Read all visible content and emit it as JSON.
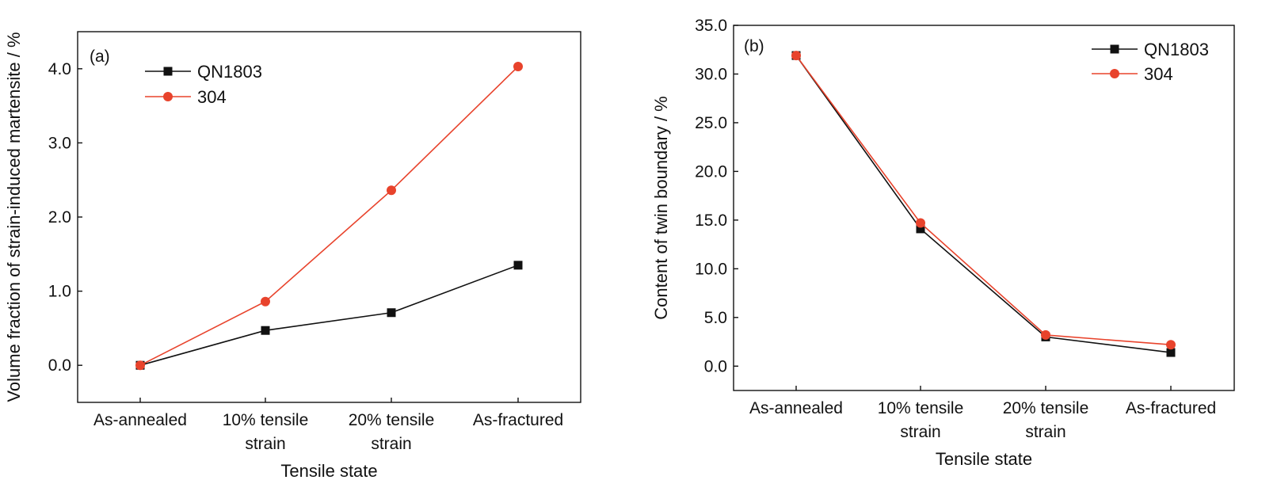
{
  "chart_data": [
    {
      "type": "line",
      "panel_label": "(a)",
      "categories": [
        [
          "As-annealed"
        ],
        [
          "10% tensile",
          "strain"
        ],
        [
          "20% tensile",
          "strain"
        ],
        [
          "As-fractured"
        ]
      ],
      "series": [
        {
          "name": "QN1803",
          "color": "#111111",
          "marker": "square",
          "values": [
            0.0,
            0.47,
            0.71,
            1.35
          ]
        },
        {
          "name": "304",
          "color": "#e8432c",
          "marker": "circle",
          "values": [
            0.0,
            0.86,
            2.36,
            4.03
          ]
        }
      ],
      "xlabel": "Tensile state",
      "ylabel": "Volume fraction of strain-induced martensite / %",
      "ylim": [
        -0.5,
        4.5
      ],
      "yticks": [
        "0.0",
        "1.0",
        "2.0",
        "3.0",
        "4.0"
      ],
      "legend_position": "top-left",
      "grid": false
    },
    {
      "type": "line",
      "panel_label": "(b)",
      "categories": [
        [
          "As-annealed"
        ],
        [
          "10% tensile",
          "strain"
        ],
        [
          "20% tensile",
          "strain"
        ],
        [
          "As-fractured"
        ]
      ],
      "series": [
        {
          "name": "QN1803",
          "color": "#111111",
          "marker": "square",
          "values": [
            31.9,
            14.1,
            3.0,
            1.4
          ]
        },
        {
          "name": "304",
          "color": "#e8432c",
          "marker": "circle",
          "values": [
            31.9,
            14.7,
            3.2,
            2.2
          ]
        }
      ],
      "xlabel": "Tensile state",
      "ylabel": "Content of twin boundary / %",
      "ylim": [
        -2.5,
        35.0
      ],
      "yticks": [
        "0.0",
        "5.0",
        "10.0",
        "15.0",
        "20.0",
        "25.0",
        "30.0",
        "35.0"
      ],
      "legend_position": "top-right",
      "grid": false
    }
  ]
}
